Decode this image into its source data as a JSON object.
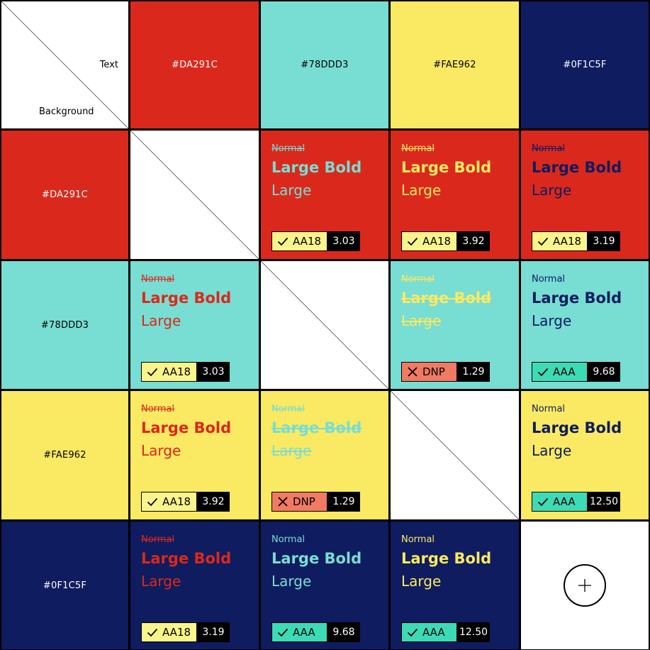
{
  "corner": {
    "text_label": "Text",
    "background_label": "Background"
  },
  "palette": [
    {
      "hex": "#DA291C",
      "label": "#DA291C",
      "header_text": "#FFFFFF"
    },
    {
      "hex": "#78DDD3",
      "label": "#78DDD3",
      "header_text": "#000000"
    },
    {
      "hex": "#FAE962",
      "label": "#FAE962",
      "header_text": "#000000"
    },
    {
      "hex": "#0F1C5F",
      "label": "#0F1C5F",
      "header_text": "#FFFFFF"
    }
  ],
  "badge_colors": {
    "AA18": "#FAF48C",
    "AAA": "#3DDBB5",
    "DNP": "#F07A63"
  },
  "sample_text": {
    "normal": "Normal",
    "large_bold": "Large Bold",
    "large": "Large"
  },
  "add_button": {
    "icon": "plus-icon"
  },
  "rows": [
    {
      "background_label": "#DA291C",
      "cells": [
        null,
        {
          "text_color": "#78DDD3",
          "normal_pass": false,
          "large_bold_pass": true,
          "large_pass": true,
          "rating": "AA18",
          "score": "3.03",
          "icon": "check-icon"
        },
        {
          "text_color": "#FAE962",
          "normal_pass": false,
          "large_bold_pass": true,
          "large_pass": true,
          "rating": "AA18",
          "score": "3.92",
          "icon": "check-icon"
        },
        {
          "text_color": "#0F1C5F",
          "normal_pass": false,
          "large_bold_pass": true,
          "large_pass": true,
          "rating": "AA18",
          "score": "3.19",
          "icon": "check-icon"
        }
      ]
    },
    {
      "background_label": "#78DDD3",
      "cells": [
        {
          "text_color": "#DA291C",
          "normal_pass": false,
          "large_bold_pass": true,
          "large_pass": true,
          "rating": "AA18",
          "score": "3.03",
          "icon": "check-icon"
        },
        null,
        {
          "text_color": "#FAE962",
          "normal_pass": false,
          "large_bold_pass": false,
          "large_pass": false,
          "rating": "DNP",
          "score": "1.29",
          "icon": "x-icon"
        },
        {
          "text_color": "#0F1C5F",
          "normal_pass": true,
          "large_bold_pass": true,
          "large_pass": true,
          "rating": "AAA",
          "score": "9.68",
          "icon": "check-icon"
        }
      ]
    },
    {
      "background_label": "#FAE962",
      "cells": [
        {
          "text_color": "#DA291C",
          "normal_pass": false,
          "large_bold_pass": true,
          "large_pass": true,
          "rating": "AA18",
          "score": "3.92",
          "icon": "check-icon"
        },
        {
          "text_color": "#78DDD3",
          "normal_pass": false,
          "large_bold_pass": false,
          "large_pass": false,
          "rating": "DNP",
          "score": "1.29",
          "icon": "x-icon"
        },
        null,
        {
          "text_color": "#0F1C5F",
          "normal_pass": true,
          "large_bold_pass": true,
          "large_pass": true,
          "rating": "AAA",
          "score": "12.50",
          "icon": "check-icon"
        }
      ]
    },
    {
      "background_label": "#0F1C5F",
      "cells": [
        {
          "text_color": "#DA291C",
          "normal_pass": false,
          "large_bold_pass": true,
          "large_pass": true,
          "rating": "AA18",
          "score": "3.19",
          "icon": "check-icon"
        },
        {
          "text_color": "#78DDD3",
          "normal_pass": true,
          "large_bold_pass": true,
          "large_pass": true,
          "rating": "AAA",
          "score": "9.68",
          "icon": "check-icon"
        },
        {
          "text_color": "#FAE962",
          "normal_pass": true,
          "large_bold_pass": true,
          "large_pass": true,
          "rating": "AAA",
          "score": "12.50",
          "icon": "check-icon"
        },
        null
      ]
    }
  ]
}
